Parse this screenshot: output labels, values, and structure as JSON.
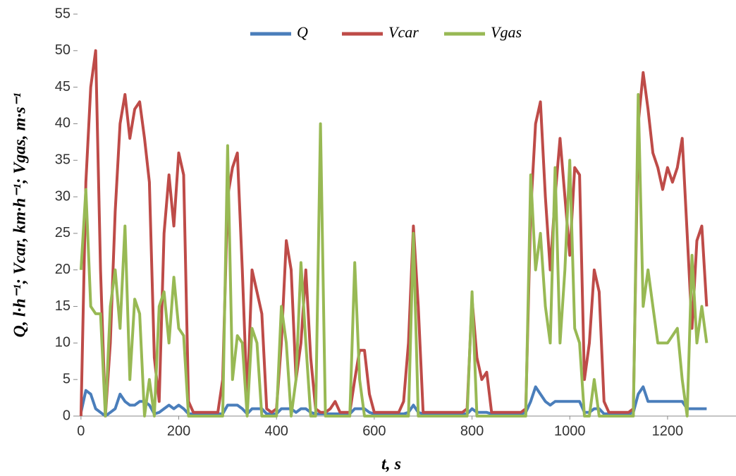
{
  "chart_data": {
    "type": "line",
    "y_label": "Q, l·h⁻¹; Vcar, km·h⁻¹; Vgas, m·s⁻¹",
    "x_label": "t, s",
    "x": [
      0,
      10,
      20,
      30,
      40,
      50,
      60,
      70,
      80,
      90,
      100,
      110,
      120,
      130,
      140,
      150,
      160,
      170,
      180,
      190,
      200,
      210,
      220,
      230,
      240,
      250,
      260,
      270,
      280,
      290,
      300,
      310,
      320,
      330,
      340,
      350,
      360,
      370,
      380,
      390,
      400,
      410,
      420,
      430,
      440,
      450,
      460,
      470,
      480,
      490,
      500,
      510,
      520,
      530,
      540,
      550,
      560,
      570,
      580,
      590,
      600,
      610,
      620,
      630,
      640,
      650,
      660,
      670,
      680,
      690,
      700,
      710,
      720,
      730,
      740,
      750,
      760,
      770,
      780,
      790,
      800,
      810,
      820,
      830,
      840,
      850,
      860,
      870,
      880,
      890,
      900,
      910,
      920,
      930,
      940,
      950,
      960,
      970,
      980,
      990,
      1000,
      1010,
      1020,
      1030,
      1040,
      1050,
      1060,
      1070,
      1080,
      1090,
      1100,
      1110,
      1120,
      1130,
      1140,
      1150,
      1160,
      1170,
      1180,
      1190,
      1200,
      1210,
      1220,
      1230,
      1240,
      1250,
      1260,
      1270,
      1280
    ],
    "series": [
      {
        "name": "Q",
        "color": "#4a7ebb",
        "values": [
          0.5,
          3.5,
          3,
          1,
          0.5,
          0,
          0.5,
          1,
          3,
          2,
          1.5,
          1.5,
          2,
          2,
          1.5,
          0.3,
          0.5,
          1,
          1.5,
          1,
          1.5,
          1,
          0.3,
          0.3,
          0.3,
          0.3,
          0.3,
          0.3,
          0.3,
          0.3,
          1.5,
          1.5,
          1.5,
          1,
          0.3,
          1,
          1,
          1,
          0.3,
          0.3,
          0.3,
          1,
          1,
          1,
          0.5,
          1,
          1,
          0.5,
          0.3,
          0.3,
          0.3,
          0.3,
          0.3,
          0.3,
          0.3,
          0.3,
          1,
          1,
          1,
          0.5,
          0.3,
          0.3,
          0.3,
          0.3,
          0.3,
          0.3,
          0.3,
          0.5,
          1.5,
          0.5,
          0.3,
          0.3,
          0.3,
          0.3,
          0.3,
          0.3,
          0.3,
          0.3,
          0.3,
          0.3,
          1,
          0.5,
          0.5,
          0.5,
          0.3,
          0.3,
          0.3,
          0.3,
          0.3,
          0.3,
          0.3,
          0.5,
          2,
          4,
          3,
          2,
          1.5,
          2,
          2,
          2,
          2,
          2,
          2,
          0.5,
          0.5,
          1,
          1,
          0.3,
          0.3,
          0.3,
          0.3,
          0.3,
          0.3,
          0.5,
          3,
          4,
          2,
          2,
          2,
          2,
          2,
          2,
          2,
          2,
          1,
          1,
          1,
          1,
          1
        ]
      },
      {
        "name": "Vcar",
        "color": "#be4b48",
        "values": [
          0,
          32,
          45,
          50,
          20,
          0,
          10,
          28,
          40,
          44,
          38,
          42,
          43,
          38,
          32,
          8,
          2,
          25,
          33,
          26,
          36,
          33,
          2,
          0.5,
          0.5,
          0.5,
          0.5,
          0.5,
          0.5,
          5,
          30,
          34,
          36,
          20,
          2,
          20,
          17,
          14,
          1,
          0.5,
          1,
          10,
          24,
          20,
          5,
          10,
          20,
          8,
          1,
          0.5,
          0.5,
          1,
          2,
          0.5,
          0.5,
          0.5,
          5,
          9,
          9,
          3,
          0.5,
          0.5,
          0.5,
          0.5,
          0.5,
          0.5,
          2,
          10,
          26,
          15,
          0.5,
          0.5,
          0.5,
          0.5,
          0.5,
          0.5,
          0.5,
          0.5,
          0.5,
          1,
          16,
          8,
          5,
          6,
          0.5,
          0.5,
          0.5,
          0.5,
          0.5,
          0.5,
          0.5,
          1,
          28,
          40,
          43,
          30,
          20,
          30,
          38,
          30,
          22,
          34,
          33,
          5,
          10,
          20,
          17,
          2,
          0.5,
          0.5,
          0.5,
          0.5,
          0.5,
          1,
          40,
          47,
          42,
          36,
          34,
          31,
          34,
          32,
          34,
          38,
          25,
          12,
          24,
          26,
          15
        ]
      },
      {
        "name": "Vgas",
        "color": "#98b954",
        "values": [
          20,
          31,
          15,
          14,
          14,
          0,
          15,
          20,
          12,
          26,
          5,
          16,
          14,
          0,
          5,
          0,
          15,
          17,
          10,
          19,
          12,
          11,
          0,
          0,
          0,
          0,
          0,
          0,
          0,
          0,
          37,
          5,
          11,
          10,
          0,
          12,
          10,
          0,
          0,
          0,
          0,
          15,
          10,
          0,
          5,
          21,
          10,
          0,
          0,
          40,
          0,
          0,
          0,
          0,
          0,
          0,
          21,
          5,
          0,
          0,
          0,
          0,
          0,
          0,
          0,
          0,
          0,
          0,
          25,
          0,
          0,
          0,
          0,
          0,
          0,
          0,
          0,
          0,
          0,
          0,
          17,
          0,
          0,
          0,
          0,
          0,
          0,
          0,
          0,
          0,
          0,
          0,
          33,
          20,
          25,
          15,
          10,
          34,
          10,
          20,
          35,
          12,
          10,
          0,
          0,
          5,
          0,
          0,
          0,
          0,
          0,
          0,
          0,
          0,
          44,
          15,
          20,
          15,
          10,
          10,
          10,
          11,
          12,
          5,
          0,
          22,
          10,
          15,
          10
        ]
      }
    ],
    "xlim": [
      -7,
      1340
    ],
    "xticks": [
      0,
      200,
      400,
      600,
      800,
      1000,
      1200
    ],
    "ylim": [
      0,
      55
    ],
    "yticks": [
      0,
      5,
      10,
      15,
      20,
      25,
      30,
      35,
      40,
      45,
      50,
      55
    ]
  }
}
